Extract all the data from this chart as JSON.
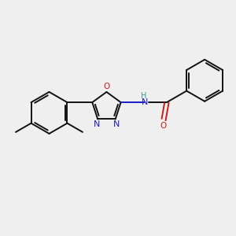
{
  "bg_color": "#efefef",
  "bond_color": "#111111",
  "n_color": "#1a1acc",
  "o_color": "#cc1a1a",
  "nh_color": "#3a9999",
  "lw": 1.4,
  "figsize": [
    3.0,
    3.0
  ],
  "dpi": 100,
  "xlim": [
    -0.5,
    10.5
  ],
  "ylim": [
    -2.0,
    4.5
  ]
}
